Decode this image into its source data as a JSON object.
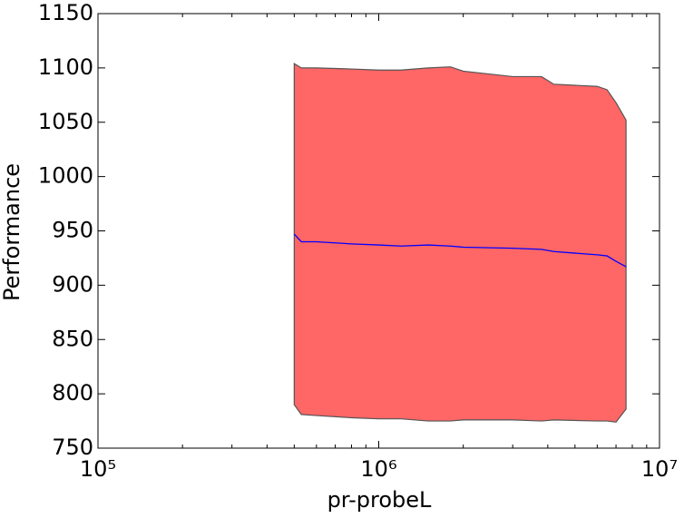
{
  "chart_data": {
    "type": "line",
    "xlabel": "pr-probeL",
    "ylabel": "Performance",
    "x": [
      500000,
      530000,
      600000,
      800000,
      1000000,
      1200000,
      1500000,
      1800000,
      2000000,
      3000000,
      3800000,
      4200000,
      6000000,
      6500000,
      7000000,
      7600000
    ],
    "series": [
      {
        "color": "#0000ff",
        "values": [
          947,
          940,
          940,
          938,
          937,
          936,
          937,
          936,
          935,
          934,
          933,
          931,
          928,
          927,
          922,
          917
        ]
      }
    ],
    "band": {
      "color": "#ff6666",
      "edge_color": "#555555",
      "upper": [
        1104,
        1100,
        1100,
        1099,
        1098,
        1098,
        1100,
        1101,
        1097,
        1092,
        1092,
        1085,
        1083,
        1080,
        1068,
        1052
      ],
      "lower": [
        790,
        781,
        780,
        778,
        777,
        777,
        775,
        775,
        776,
        776,
        775,
        776,
        775,
        775,
        774,
        786
      ]
    },
    "xscale": "log",
    "xlim": [
      100000,
      10000000
    ],
    "xticks": [
      {
        "value": 100000,
        "label": "10⁵"
      },
      {
        "value": 1000000,
        "label": "10⁶"
      },
      {
        "value": 10000000,
        "label": "10⁷"
      }
    ],
    "ylim": [
      750,
      1150
    ],
    "yticks": [
      750,
      800,
      850,
      900,
      950,
      1000,
      1050,
      1100,
      1150
    ]
  }
}
